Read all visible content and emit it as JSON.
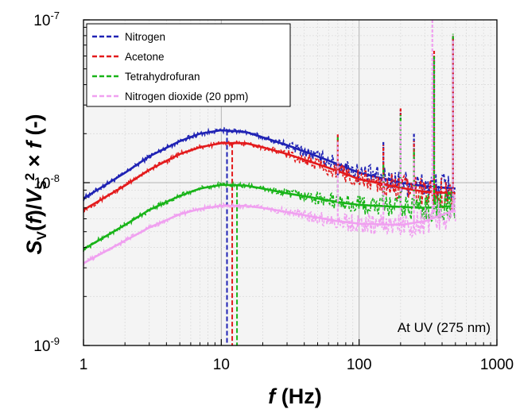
{
  "chart_data": {
    "type": "line",
    "xscale": "log",
    "yscale": "log",
    "xlim": [
      1,
      1000
    ],
    "ylim": [
      1e-09,
      1e-07
    ],
    "xticks": [
      {
        "value": 1,
        "label": "1"
      },
      {
        "value": 10,
        "label": "10"
      },
      {
        "value": 100,
        "label": "100"
      },
      {
        "value": 1000,
        "label": "1000"
      }
    ],
    "yticks": [
      {
        "value": 1e-09,
        "base": "10",
        "exp": "-9"
      },
      {
        "value": 1e-08,
        "base": "10",
        "exp": "-8"
      },
      {
        "value": 1e-07,
        "base": "10",
        "exp": "-7"
      }
    ],
    "xlabel": {
      "var": "f",
      "unit": " (Hz)"
    },
    "ylabel": {
      "s": "S",
      "s_sub": "V",
      "paren_open": "(",
      "f": "f",
      "paren_close": ")/",
      "v": "V",
      "v_sub": "S",
      "v_sup": "2",
      "times": " × ",
      "f2": "f",
      "tail": " (-)"
    },
    "grid": true,
    "legend_position": "top-left",
    "annotation": "At UV (275 nm)",
    "series": [
      {
        "name": "Nitrogen",
        "color": "#1f22b4",
        "corner_freq": 11,
        "fit": {
          "x": [
            1,
            2,
            3,
            5,
            7,
            10,
            15,
            20,
            30,
            50,
            70,
            100,
            200,
            300,
            500
          ],
          "y": [
            8e-09,
            1.15e-08,
            1.45e-08,
            1.8e-08,
            2e-08,
            2.1e-08,
            2.05e-08,
            1.9e-08,
            1.7e-08,
            1.45e-08,
            1.3e-08,
            1.15e-08,
            1e-08,
            9.5e-09,
            9.2e-09
          ]
        },
        "spikes": [
          {
            "x": 70,
            "y": 1.1e-08
          },
          {
            "x": 150,
            "y": 1.8e-08
          },
          {
            "x": 200,
            "y": 2.8e-08
          },
          {
            "x": 250,
            "y": 2e-08
          },
          {
            "x": 350,
            "y": 6e-08
          },
          {
            "x": 480,
            "y": 8e-08
          }
        ]
      },
      {
        "name": "Acetone",
        "color": "#e31a1c",
        "corner_freq": 12,
        "fit": {
          "x": [
            1,
            2,
            3,
            5,
            7,
            10,
            15,
            20,
            30,
            50,
            70,
            100,
            200,
            300,
            500
          ],
          "y": [
            6.8e-09,
            9.6e-09,
            1.2e-08,
            1.5e-08,
            1.65e-08,
            1.75e-08,
            1.75e-08,
            1.65e-08,
            1.5e-08,
            1.3e-08,
            1.18e-08,
            1.05e-08,
            9.3e-09,
            8.8e-09,
            8.6e-09
          ]
        },
        "spikes": [
          {
            "x": 70,
            "y": 2e-08
          },
          {
            "x": 150,
            "y": 1.7e-08
          },
          {
            "x": 200,
            "y": 2.9e-08
          },
          {
            "x": 250,
            "y": 1.8e-08
          },
          {
            "x": 350,
            "y": 6.5e-08
          },
          {
            "x": 480,
            "y": 8e-08
          }
        ]
      },
      {
        "name": "Tetrahydrofuran",
        "color": "#18b418",
        "corner_freq": 13,
        "fit": {
          "x": [
            1,
            2,
            3,
            5,
            7,
            10,
            15,
            20,
            30,
            50,
            70,
            100,
            200,
            300,
            500
          ],
          "y": [
            3.9e-09,
            5.5e-09,
            6.8e-09,
            8.3e-09,
            9.2e-09,
            9.7e-09,
            9.6e-09,
            9.2e-09,
            8.6e-09,
            8e-09,
            7.6e-09,
            7.3e-09,
            7.1e-09,
            7e-09,
            7.2e-09
          ]
        },
        "spikes": [
          {
            "x": 70,
            "y": 1.9e-08
          },
          {
            "x": 150,
            "y": 1.3e-08
          },
          {
            "x": 200,
            "y": 2.6e-08
          },
          {
            "x": 250,
            "y": 1.6e-08
          },
          {
            "x": 350,
            "y": 6e-08
          },
          {
            "x": 480,
            "y": 8.2e-08
          }
        ]
      },
      {
        "name": "Nitrogen dioxide (20 ppm)",
        "color": "#f0a0f0",
        "corner_freq": null,
        "fit": {
          "x": [
            1,
            2,
            3,
            5,
            7,
            10,
            15,
            20,
            30,
            50,
            70,
            100,
            200,
            300,
            500
          ],
          "y": [
            3.2e-09,
            4.4e-09,
            5.3e-09,
            6.4e-09,
            6.9e-09,
            7.2e-09,
            7.2e-09,
            7e-09,
            6.6e-09,
            6.1e-09,
            5.8e-09,
            5.6e-09,
            5.5e-09,
            5.8e-09,
            6.8e-09
          ]
        },
        "spikes": [
          {
            "x": 70,
            "y": 1.8e-08
          },
          {
            "x": 150,
            "y": 1.1e-08
          },
          {
            "x": 200,
            "y": 2.4e-08
          },
          {
            "x": 250,
            "y": 1.4e-08
          },
          {
            "x": 340,
            "y": 1e-07
          },
          {
            "x": 480,
            "y": 7.5e-08
          }
        ]
      }
    ]
  }
}
